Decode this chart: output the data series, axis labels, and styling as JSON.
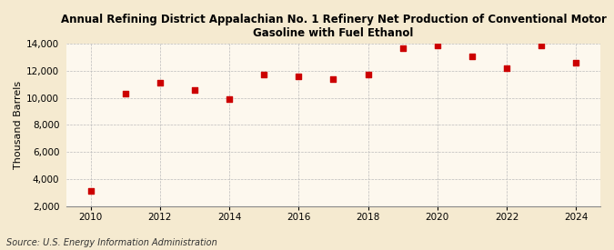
{
  "title_line1": "Annual Refining District Appalachian No. 1 Refinery Net Production of Conventional Motor",
  "title_line2": "Gasoline with Fuel Ethanol",
  "ylabel": "Thousand Barrels",
  "source": "Source: U.S. Energy Information Administration",
  "years": [
    2010,
    2011,
    2012,
    2013,
    2014,
    2015,
    2016,
    2017,
    2018,
    2019,
    2020,
    2021,
    2022,
    2023,
    2024
  ],
  "values": [
    3100,
    10300,
    11100,
    10600,
    9900,
    11700,
    11600,
    11400,
    11700,
    13700,
    13900,
    13100,
    12200,
    13900,
    12600
  ],
  "marker_color": "#cc0000",
  "marker": "s",
  "marker_size": 4,
  "fig_background_color": "#f5ead0",
  "plot_background_color": "#fdf8ee",
  "grid_color": "#bbbbbb",
  "ylim": [
    2000,
    14000
  ],
  "yticks": [
    2000,
    4000,
    6000,
    8000,
    10000,
    12000,
    14000
  ],
  "xticks": [
    2010,
    2012,
    2014,
    2016,
    2018,
    2020,
    2022,
    2024
  ],
  "title_fontsize": 8.5,
  "axis_fontsize": 7.5,
  "source_fontsize": 7.0,
  "ylabel_fontsize": 8.0
}
